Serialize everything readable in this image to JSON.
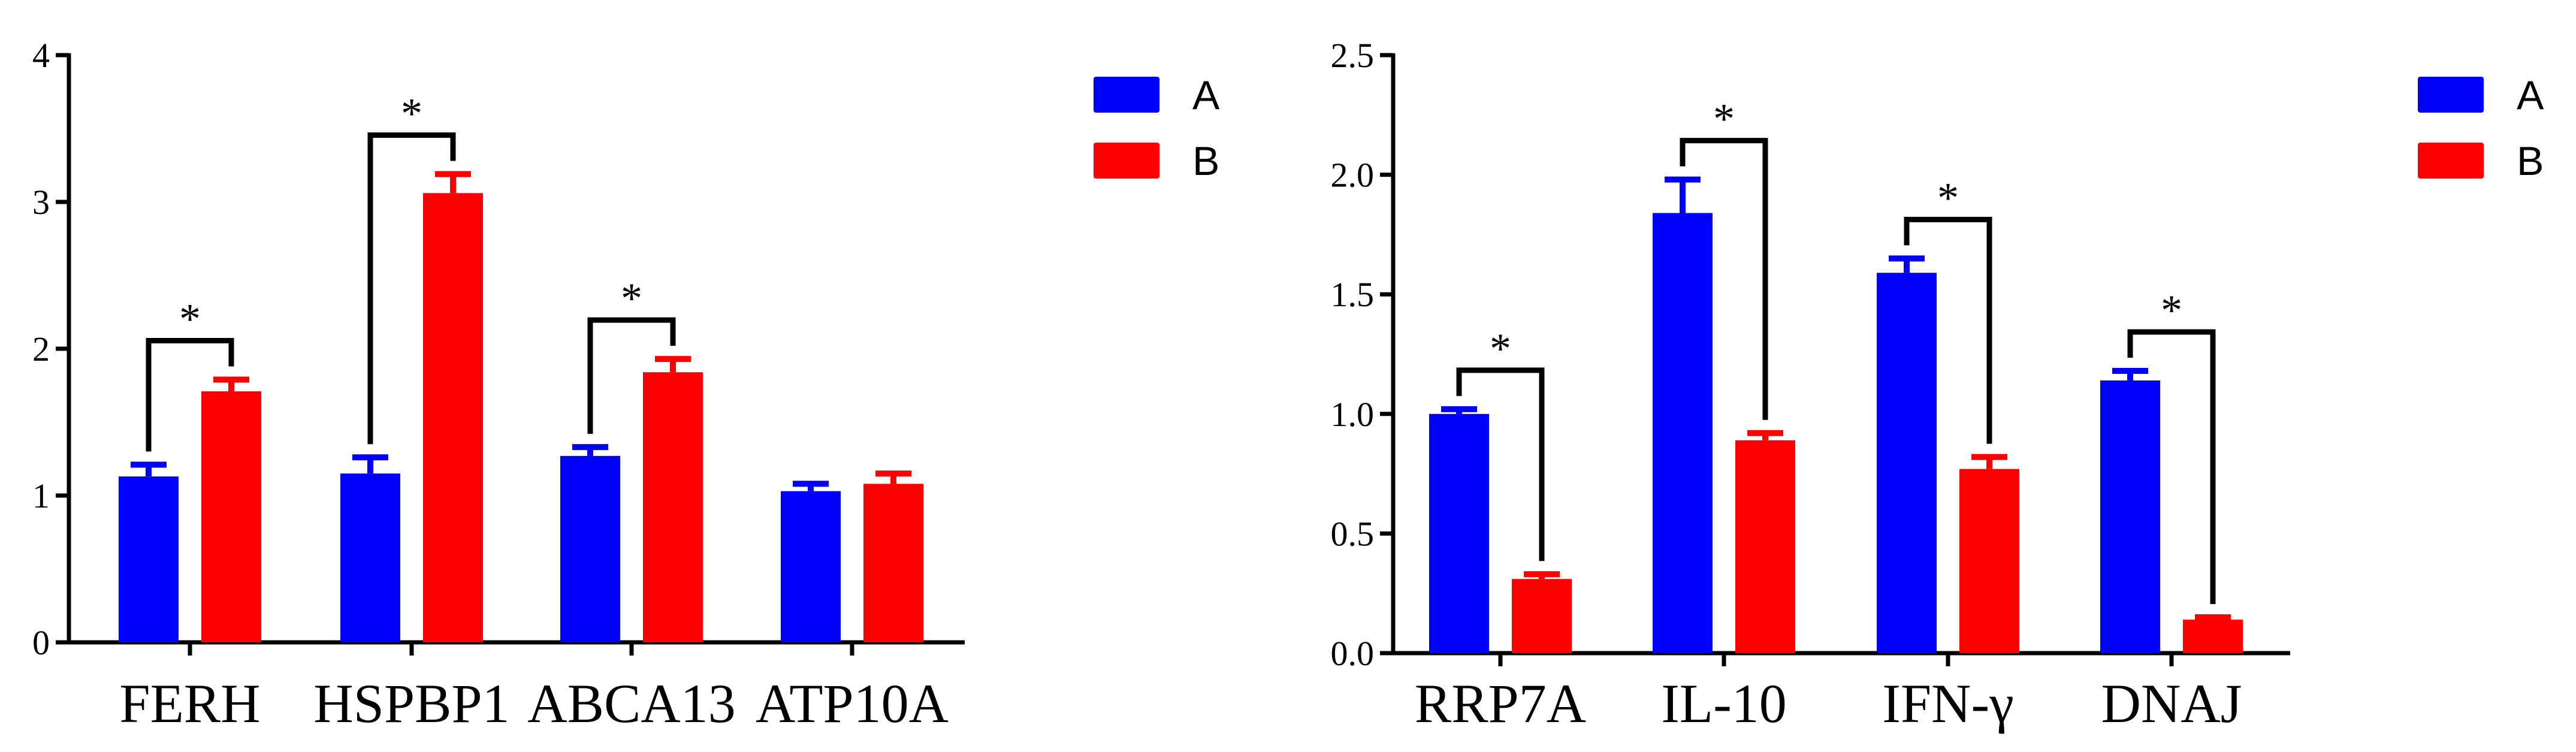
{
  "chart_data": [
    {
      "type": "bar",
      "categories": [
        "FERH",
        "HSPBP1",
        "ABCA13",
        "ATP10A"
      ],
      "series": [
        {
          "name": "A",
          "color": "#0000ff",
          "values": [
            1.13,
            1.15,
            1.27,
            1.03
          ],
          "errors": [
            0.08,
            0.11,
            0.06,
            0.05
          ]
        },
        {
          "name": "B",
          "color": "#ff0000",
          "values": [
            1.71,
            3.06,
            1.84,
            1.08
          ],
          "errors": [
            0.08,
            0.13,
            0.09,
            0.07
          ]
        }
      ],
      "significance": [
        "*",
        "*",
        "*",
        ""
      ],
      "ylim": [
        0,
        4
      ],
      "yticks": [
        "0",
        "1",
        "2",
        "3",
        "4"
      ],
      "legend_position": "top-right"
    },
    {
      "type": "bar",
      "categories": [
        "RRP7A",
        "IL-10",
        "IFN-γ",
        "DNAJ"
      ],
      "series": [
        {
          "name": "A",
          "color": "#0000ff",
          "values": [
            1.0,
            1.84,
            1.59,
            1.14
          ],
          "errors": [
            0.02,
            0.14,
            0.06,
            0.04
          ]
        },
        {
          "name": "B",
          "color": "#ff0000",
          "values": [
            0.31,
            0.89,
            0.77,
            0.14
          ],
          "errors": [
            0.02,
            0.03,
            0.05,
            0.01
          ]
        }
      ],
      "significance": [
        "*",
        "*",
        "*",
        "*"
      ],
      "ylim": [
        0,
        2.5
      ],
      "yticks": [
        "0.0",
        "0.5",
        "1.0",
        "1.5",
        "2.0",
        "2.5"
      ],
      "legend_position": "top-right"
    }
  ]
}
